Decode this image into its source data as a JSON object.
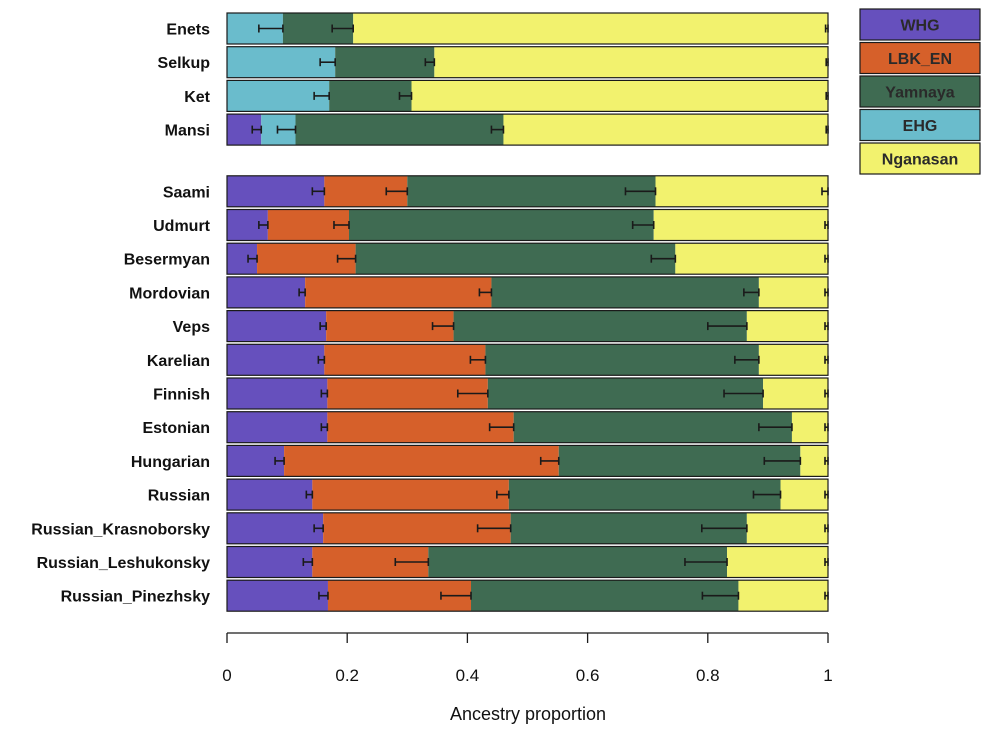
{
  "chart_data": {
    "type": "bar",
    "orientation": "horizontal",
    "stacked": true,
    "xlabel": "Ancestry proportion",
    "xlim": [
      0,
      1
    ],
    "x_ticks": [
      0,
      0.2,
      0.4,
      0.6,
      0.8,
      1
    ],
    "x_tick_labels": [
      "0",
      "0.2",
      "0.4",
      "0.6",
      "0.8",
      "1"
    ],
    "legend_position": "top-right",
    "components": [
      {
        "name": "WHG",
        "color": "#6650bd"
      },
      {
        "name": "LBK_EN",
        "color": "#d6602a"
      },
      {
        "name": "Yamnaya",
        "color": "#3f6b52"
      },
      {
        "name": "EHG",
        "color": "#6abccc"
      },
      {
        "name": "Nganasan",
        "color": "#f2f26e"
      }
    ],
    "groups": [
      {
        "populations": [
          {
            "name": "Enets",
            "segments": [
              [
                "EHG",
                0.093,
                0.04
              ],
              [
                "Yamnaya",
                0.117,
                0.035
              ],
              [
                "Nganasan",
                0.79,
                0.004
              ]
            ]
          },
          {
            "name": "Selkup",
            "segments": [
              [
                "EHG",
                0.18,
                0.025
              ],
              [
                "Yamnaya",
                0.165,
                0.015
              ],
              [
                "Nganasan",
                0.655,
                0.003
              ]
            ]
          },
          {
            "name": "Ket",
            "segments": [
              [
                "EHG",
                0.17,
                0.025
              ],
              [
                "Yamnaya",
                0.137,
                0.02
              ],
              [
                "Nganasan",
                0.693,
                0.003
              ]
            ]
          },
          {
            "name": "Mansi",
            "segments": [
              [
                "WHG",
                0.057,
                0.015
              ],
              [
                "EHG",
                0.057,
                0.03
              ],
              [
                "Yamnaya",
                0.346,
                0.02
              ],
              [
                "Nganasan",
                0.54,
                0.003
              ]
            ]
          }
        ]
      },
      {
        "populations": [
          {
            "name": "Saami",
            "segments": [
              [
                "WHG",
                0.162,
                0.02
              ],
              [
                "LBK_EN",
                0.138,
                0.035
              ],
              [
                "Yamnaya",
                0.413,
                0.05
              ],
              [
                "Nganasan",
                0.287,
                0.01
              ]
            ]
          },
          {
            "name": "Udmurt",
            "segments": [
              [
                "WHG",
                0.068,
                0.015
              ],
              [
                "LBK_EN",
                0.135,
                0.025
              ],
              [
                "Yamnaya",
                0.507,
                0.035
              ],
              [
                "Nganasan",
                0.29,
                0.005
              ]
            ]
          },
          {
            "name": "Besermyan",
            "segments": [
              [
                "WHG",
                0.05,
                0.015
              ],
              [
                "LBK_EN",
                0.164,
                0.03
              ],
              [
                "Yamnaya",
                0.532,
                0.04
              ],
              [
                "Nganasan",
                0.254,
                0.005
              ]
            ]
          },
          {
            "name": "Mordovian",
            "segments": [
              [
                "WHG",
                0.13,
                0.01
              ],
              [
                "LBK_EN",
                0.31,
                0.02
              ],
              [
                "Yamnaya",
                0.445,
                0.025
              ],
              [
                "Nganasan",
                0.115,
                0.005
              ]
            ]
          },
          {
            "name": "Veps",
            "segments": [
              [
                "WHG",
                0.165,
                0.01
              ],
              [
                "LBK_EN",
                0.212,
                0.035
              ],
              [
                "Yamnaya",
                0.488,
                0.065
              ],
              [
                "Nganasan",
                0.135,
                0.005
              ]
            ]
          },
          {
            "name": "Karelian",
            "segments": [
              [
                "WHG",
                0.162,
                0.01
              ],
              [
                "LBK_EN",
                0.268,
                0.025
              ],
              [
                "Yamnaya",
                0.455,
                0.04
              ],
              [
                "Nganasan",
                0.115,
                0.005
              ]
            ]
          },
          {
            "name": "Finnish",
            "segments": [
              [
                "WHG",
                0.167,
                0.01
              ],
              [
                "LBK_EN",
                0.267,
                0.05
              ],
              [
                "Yamnaya",
                0.458,
                0.065
              ],
              [
                "Nganasan",
                0.108,
                0.005
              ]
            ]
          },
          {
            "name": "Estonian",
            "segments": [
              [
                "WHG",
                0.167,
                0.01
              ],
              [
                "LBK_EN",
                0.31,
                0.04
              ],
              [
                "Yamnaya",
                0.463,
                0.055
              ],
              [
                "Nganasan",
                0.06,
                0.005
              ]
            ]
          },
          {
            "name": "Hungarian",
            "segments": [
              [
                "WHG",
                0.095,
                0.015
              ],
              [
                "LBK_EN",
                0.457,
                0.03
              ],
              [
                "Yamnaya",
                0.402,
                0.06
              ],
              [
                "Nganasan",
                0.046,
                0.005
              ]
            ]
          },
          {
            "name": "Russian",
            "segments": [
              [
                "WHG",
                0.142,
                0.01
              ],
              [
                "LBK_EN",
                0.327,
                0.02
              ],
              [
                "Yamnaya",
                0.452,
                0.045
              ],
              [
                "Nganasan",
                0.079,
                0.005
              ]
            ]
          },
          {
            "name": "Russian_Krasnoborsky",
            "segments": [
              [
                "WHG",
                0.16,
                0.015
              ],
              [
                "LBK_EN",
                0.312,
                0.055
              ],
              [
                "Yamnaya",
                0.393,
                0.075
              ],
              [
                "Nganasan",
                0.135,
                0.005
              ]
            ]
          },
          {
            "name": "Russian_Leshukonsky",
            "segments": [
              [
                "WHG",
                0.142,
                0.015
              ],
              [
                "LBK_EN",
                0.193,
                0.055
              ],
              [
                "Yamnaya",
                0.497,
                0.07
              ],
              [
                "Nganasan",
                0.168,
                0.005
              ]
            ]
          },
          {
            "name": "Russian_Pinezhsky",
            "segments": [
              [
                "WHG",
                0.168,
                0.015
              ],
              [
                "LBK_EN",
                0.238,
                0.05
              ],
              [
                "Yamnaya",
                0.445,
                0.06
              ],
              [
                "Nganasan",
                0.149,
                0.005
              ]
            ]
          }
        ]
      }
    ]
  }
}
